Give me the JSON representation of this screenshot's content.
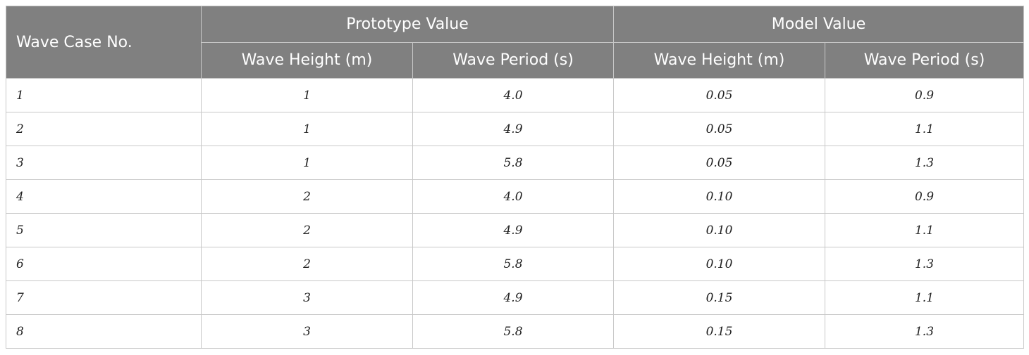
{
  "table": {
    "header": {
      "case_label": "Wave Case No.",
      "group_prototype": "Prototype Value",
      "group_model": "Model Value",
      "prototype_height": "Wave Height (m)",
      "prototype_period": "Wave Period (s)",
      "model_height": "Wave Height (m)",
      "model_period": "Wave Period (s)"
    },
    "rows": [
      [
        "1",
        "1",
        "4.0",
        "0.05",
        "0.9"
      ],
      [
        "2",
        "1",
        "4.9",
        "0.05",
        "1.1"
      ],
      [
        "3",
        "1",
        "5.8",
        "0.05",
        "1.3"
      ],
      [
        "4",
        "2",
        "4.0",
        "0.10",
        "0.9"
      ],
      [
        "5",
        "2",
        "4.9",
        "0.10",
        "1.1"
      ],
      [
        "6",
        "2",
        "5.8",
        "0.10",
        "1.3"
      ],
      [
        "7",
        "3",
        "4.9",
        "0.15",
        "1.1"
      ],
      [
        "8",
        "3",
        "5.8",
        "0.15",
        "1.3"
      ]
    ]
  },
  "colors": {
    "header_bg": "#808080",
    "header_text": "#ffffff",
    "border": "#c8c8c8"
  }
}
